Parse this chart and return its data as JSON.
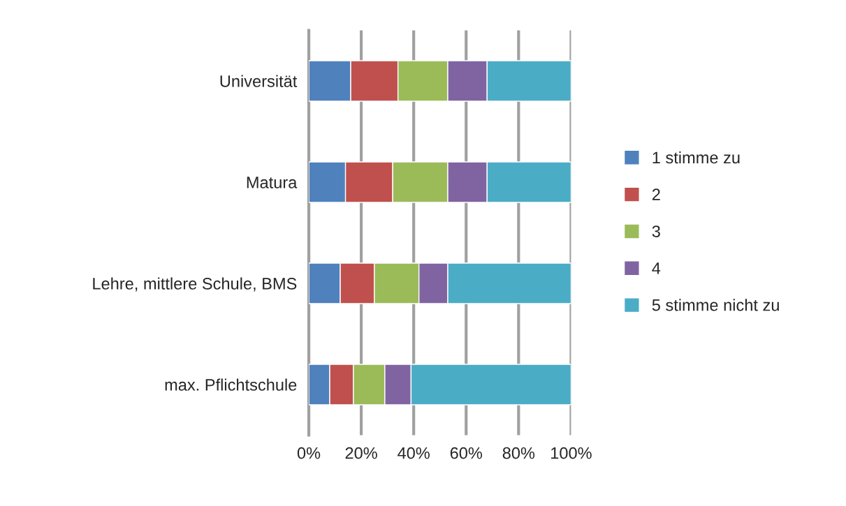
{
  "chart_data": {
    "type": "bar",
    "orientation": "horizontal",
    "stacked": true,
    "categories": [
      "Universität",
      "Matura",
      "Lehre, mittlere Schule, BMS",
      "max. Pflichtschule"
    ],
    "series": [
      {
        "name": "1 stimme zu",
        "color": "#4f81bd",
        "values": [
          16,
          14,
          12,
          8
        ]
      },
      {
        "name": "2",
        "color": "#c0504d",
        "values": [
          18,
          18,
          13,
          9
        ]
      },
      {
        "name": "3",
        "color": "#9bbb59",
        "values": [
          19,
          21,
          17,
          12
        ]
      },
      {
        "name": "4",
        "color": "#8064a2",
        "values": [
          15,
          15,
          11,
          10
        ]
      },
      {
        "name": "5 stimme nicht zu",
        "color": "#4bacc6",
        "values": [
          32,
          32,
          47,
          61
        ]
      }
    ],
    "xlim": [
      0,
      100
    ],
    "xticks": [
      {
        "value": 0,
        "label": "0%"
      },
      {
        "value": 20,
        "label": "20%"
      },
      {
        "value": 40,
        "label": "40%"
      },
      {
        "value": 60,
        "label": "60%"
      },
      {
        "value": 80,
        "label": "80%"
      },
      {
        "value": 100,
        "label": "100%"
      }
    ],
    "grid": "x",
    "legend": "right"
  }
}
